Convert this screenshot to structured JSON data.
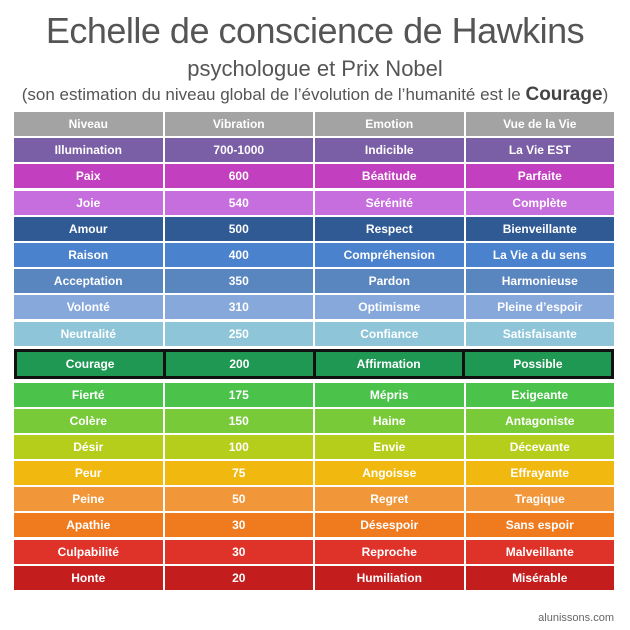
{
  "header": {
    "title": "Echelle de conscience de Hawkins",
    "subtitle": "psychologue et Prix Nobel",
    "note": [
      "(son estimation du niveau global de l’évolution de l’humanité est le",
      "Courage",
      ")"
    ]
  },
  "table": {
    "header": {
      "cells": [
        "Niveau",
        "Vibration",
        "Emotion",
        "Vue de la Vie"
      ],
      "color": "#a3a3a3"
    },
    "rows": [
      {
        "cells": [
          "Illumination",
          "700-1000",
          "Indicible",
          "La Vie EST"
        ],
        "color": "#7a5ea6"
      },
      {
        "cells": [
          "Paix",
          "600",
          "Béatitude",
          "Parfaite"
        ],
        "color": "#c23fbf"
      },
      {
        "cells": [
          "Joie",
          "540",
          "Sérénité",
          "Complète"
        ],
        "color": "#c76ede"
      },
      {
        "cells": [
          "Amour",
          "500",
          "Respect",
          "Bienveillante"
        ],
        "color": "#2f5a93"
      },
      {
        "cells": [
          "Raison",
          "400",
          "Compréhension",
          "La Vie a du sens"
        ],
        "color": "#4a82cd"
      },
      {
        "cells": [
          "Acceptation",
          "350",
          "Pardon",
          "Harmonieuse"
        ],
        "color": "#5a86c0"
      },
      {
        "cells": [
          "Volonté",
          "310",
          "Optimisme",
          "Pleine d’espoir"
        ],
        "color": "#87a8db"
      },
      {
        "cells": [
          "Neutralité",
          "250",
          "Confiance",
          "Satisfaisante"
        ],
        "color": "#8ec5d8"
      },
      {
        "cells": [
          "Courage",
          "200",
          "Affirmation",
          "Possible"
        ],
        "color": "#1f9854",
        "highlight": true
      },
      {
        "cells": [
          "Fierté",
          "175",
          "Mépris",
          "Exigeante"
        ],
        "color": "#4bc34b"
      },
      {
        "cells": [
          "Colère",
          "150",
          "Haine",
          "Antagoniste"
        ],
        "color": "#79ca39"
      },
      {
        "cells": [
          "Désir",
          "100",
          "Envie",
          "Décevante"
        ],
        "color": "#b5ce1c"
      },
      {
        "cells": [
          "Peur",
          "75",
          "Angoisse",
          "Effrayante"
        ],
        "color": "#f1b90f"
      },
      {
        "cells": [
          "Peine",
          "50",
          "Regret",
          "Tragique"
        ],
        "color": "#f2963a"
      },
      {
        "cells": [
          "Apathie",
          "30",
          "Désespoir",
          "Sans espoir"
        ],
        "color": "#f07a1e"
      },
      {
        "cells": [
          "Culpabilité",
          "30",
          "Reproche",
          "Malveillante"
        ],
        "color": "#df332a"
      },
      {
        "cells": [
          "Honte",
          "20",
          "Humiliation",
          "Misérable"
        ],
        "color": "#c41d1d"
      }
    ]
  },
  "footer": "alunissons.com"
}
